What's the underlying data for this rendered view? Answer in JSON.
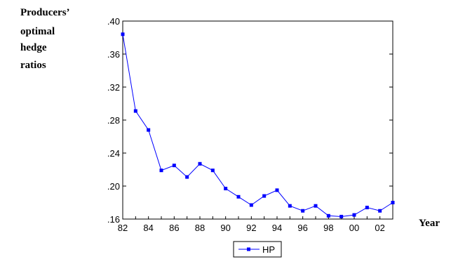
{
  "chart_data": {
    "type": "line",
    "ylabel_lines": [
      "Producers’",
      "optimal",
      "hedge",
      "ratios"
    ],
    "xlabel": "Year",
    "ylim": [
      0.16,
      0.4
    ],
    "y_ticks": [
      ".16",
      ".20",
      ".24",
      ".28",
      ".32",
      ".36",
      ".40"
    ],
    "y_tick_values": [
      0.16,
      0.2,
      0.24,
      0.28,
      0.32,
      0.36,
      0.4
    ],
    "xlim": [
      1982,
      2003
    ],
    "x_ticks": [
      "82",
      "84",
      "86",
      "88",
      "90",
      "92",
      "94",
      "96",
      "98",
      "00",
      "02"
    ],
    "x_tick_values": [
      1982,
      1984,
      1986,
      1988,
      1990,
      1992,
      1994,
      1996,
      1998,
      2000,
      2002
    ],
    "grid": false,
    "legend_position": "bottom-center",
    "series": [
      {
        "name": "HP",
        "color": "#0000ff",
        "marker": "square",
        "x": [
          1982,
          1983,
          1984,
          1985,
          1986,
          1987,
          1988,
          1989,
          1990,
          1991,
          1992,
          1993,
          1994,
          1995,
          1996,
          1997,
          1998,
          1999,
          2000,
          2001,
          2002,
          2003
        ],
        "values": [
          0.384,
          0.291,
          0.268,
          0.219,
          0.225,
          0.211,
          0.227,
          0.219,
          0.197,
          0.187,
          0.177,
          0.188,
          0.195,
          0.176,
          0.17,
          0.176,
          0.164,
          0.163,
          0.165,
          0.174,
          0.17,
          0.18
        ]
      }
    ]
  }
}
